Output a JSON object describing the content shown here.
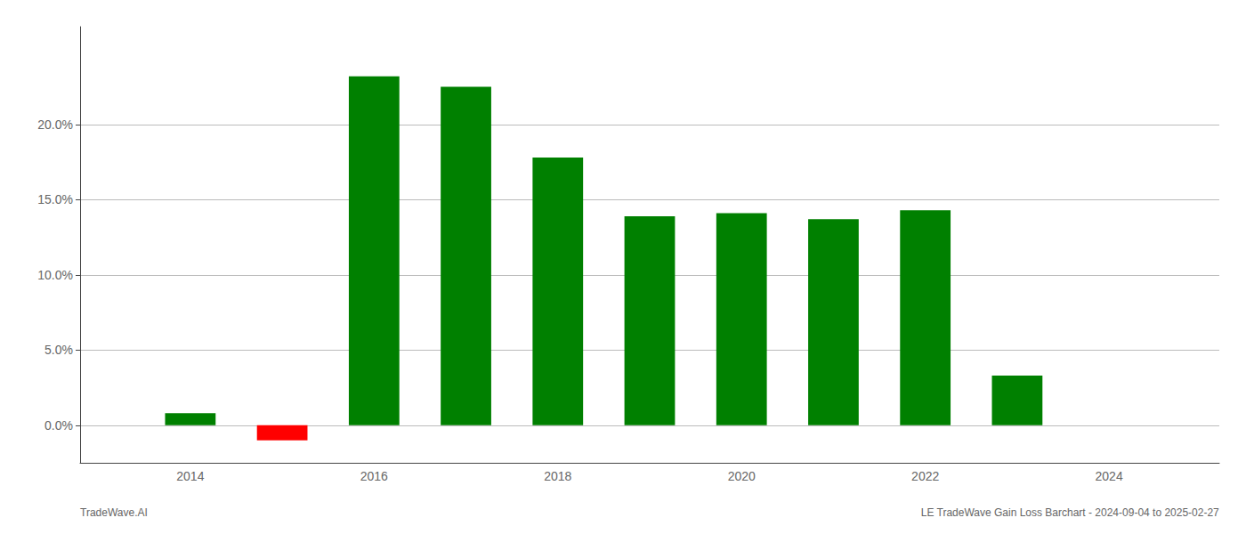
{
  "chart_data": {
    "type": "bar",
    "x": [
      2014,
      2015,
      2016,
      2017,
      2018,
      2019,
      2020,
      2021,
      2022,
      2023
    ],
    "values": [
      0.008,
      -0.01,
      0.232,
      0.225,
      0.178,
      0.139,
      0.141,
      0.137,
      0.143,
      0.033
    ],
    "colors": [
      "#008000",
      "#ff0000",
      "#008000",
      "#008000",
      "#008000",
      "#008000",
      "#008000",
      "#008000",
      "#008000",
      "#008000"
    ],
    "xlim": [
      2012.8,
      2025.2
    ],
    "xticks": [
      2014,
      2016,
      2018,
      2020,
      2022,
      2024
    ],
    "ylim": [
      -0.025,
      0.265
    ],
    "yticks": [
      {
        "value": 0.0,
        "label": "0.0%"
      },
      {
        "value": 0.05,
        "label": "5.0%"
      },
      {
        "value": 0.1,
        "label": "10.0%"
      },
      {
        "value": 0.15,
        "label": "15.0%"
      },
      {
        "value": 0.2,
        "label": "20.0%"
      }
    ],
    "grid": true,
    "annotations": [
      "TradeWave.AI",
      "LE TradeWave Gain Loss Barchart - 2024-09-04 to 2025-02-27"
    ]
  }
}
